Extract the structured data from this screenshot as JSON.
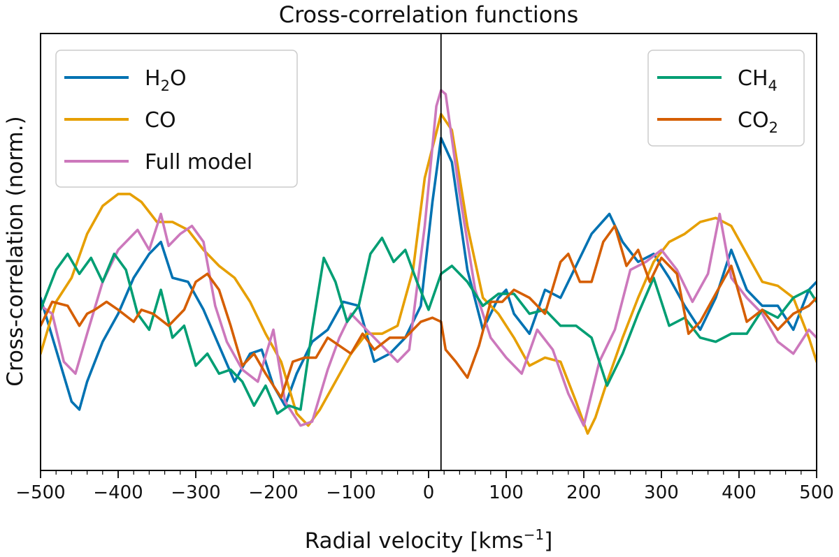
{
  "chart_data": {
    "type": "line",
    "title": "Cross-correlation functions",
    "xlabel": "Radial velocity [kms",
    "xlabel_sup": "−1",
    "xlabel_close": "]",
    "ylabel": "Cross-correlation (norm.)",
    "xlim": [
      -500,
      500
    ],
    "ylim": [
      0,
      1
    ],
    "xticks": [
      -500,
      -400,
      -300,
      -200,
      -100,
      0,
      100,
      200,
      300,
      400,
      500
    ],
    "xtick_labels": [
      "−500",
      "−400",
      "−300",
      "−200",
      "−100",
      "0",
      "100",
      "200",
      "300",
      "400",
      "500"
    ],
    "vline_x": 16,
    "legend_left": [
      {
        "base": "H",
        "sub": "2",
        "rest": "O",
        "series_index": 0
      },
      {
        "base": "CO",
        "sub": "",
        "rest": "",
        "series_index": 1
      },
      {
        "base": "Full model",
        "sub": "",
        "rest": "",
        "series_index": 2
      }
    ],
    "legend_right": [
      {
        "base": "CH",
        "sub": "4",
        "rest": "",
        "series_index": 3
      },
      {
        "base": "CO",
        "sub": "2",
        "rest": "",
        "series_index": 4
      }
    ],
    "series": [
      {
        "name": "H2O",
        "color": "#0072b2",
        "x": [
          -500,
          -480,
          -460,
          -450,
          -440,
          -420,
          -400,
          -380,
          -360,
          -345,
          -330,
          -310,
          -290,
          -270,
          -250,
          -230,
          -215,
          -200,
          -185,
          -170,
          -150,
          -130,
          -110,
          -90,
          -70,
          -50,
          -30,
          -10,
          5,
          16,
          30,
          50,
          70,
          90,
          100,
          110,
          130,
          150,
          170,
          190,
          210,
          233,
          250,
          270,
          290,
          310,
          330,
          350,
          370,
          390,
          410,
          430,
          450,
          470,
          490,
          500
        ],
        "y": [
          0.38,
          0.25,
          0.12,
          0.1,
          0.17,
          0.27,
          0.34,
          0.43,
          0.49,
          0.52,
          0.43,
          0.42,
          0.35,
          0.26,
          0.17,
          0.24,
          0.25,
          0.16,
          0.11,
          0.19,
          0.27,
          0.3,
          0.37,
          0.36,
          0.22,
          0.24,
          0.28,
          0.36,
          0.62,
          0.78,
          0.72,
          0.45,
          0.3,
          0.38,
          0.4,
          0.34,
          0.29,
          0.4,
          0.38,
          0.46,
          0.54,
          0.59,
          0.52,
          0.47,
          0.49,
          0.43,
          0.36,
          0.3,
          0.38,
          0.5,
          0.4,
          0.36,
          0.36,
          0.3,
          0.4,
          0.42
        ]
      },
      {
        "name": "CO",
        "color": "#e69f00",
        "x": [
          -500,
          -480,
          -460,
          -440,
          -420,
          -400,
          -385,
          -370,
          -350,
          -330,
          -310,
          -290,
          -270,
          -250,
          -230,
          -210,
          -190,
          -170,
          -155,
          -140,
          -120,
          -100,
          -80,
          -60,
          -40,
          -20,
          -5,
          16,
          30,
          50,
          70,
          90,
          110,
          130,
          150,
          170,
          190,
          205,
          215,
          230,
          250,
          270,
          290,
          310,
          330,
          350,
          370,
          390,
          410,
          430,
          450,
          470,
          490,
          500
        ],
        "y": [
          0.24,
          0.37,
          0.43,
          0.54,
          0.61,
          0.64,
          0.64,
          0.62,
          0.57,
          0.57,
          0.55,
          0.5,
          0.46,
          0.43,
          0.37,
          0.29,
          0.22,
          0.09,
          0.06,
          0.1,
          0.17,
          0.24,
          0.29,
          0.29,
          0.31,
          0.45,
          0.68,
          0.84,
          0.8,
          0.56,
          0.38,
          0.34,
          0.28,
          0.21,
          0.23,
          0.22,
          0.12,
          0.04,
          0.08,
          0.17,
          0.28,
          0.38,
          0.47,
          0.52,
          0.54,
          0.57,
          0.58,
          0.56,
          0.49,
          0.42,
          0.41,
          0.38,
          0.28,
          0.22
        ]
      },
      {
        "name": "Full model",
        "color": "#cc78bc",
        "x": [
          -500,
          -485,
          -470,
          -455,
          -440,
          -420,
          -400,
          -375,
          -360,
          -345,
          -335,
          -320,
          -305,
          -290,
          -275,
          -260,
          -240,
          -220,
          -200,
          -185,
          -165,
          -150,
          -130,
          -115,
          -100,
          -80,
          -60,
          -40,
          -25,
          -5,
          10,
          16,
          22,
          40,
          60,
          80,
          100,
          120,
          140,
          160,
          180,
          200,
          220,
          240,
          260,
          280,
          300,
          320,
          340,
          360,
          375,
          390,
          410,
          430,
          450,
          470,
          490,
          500
        ],
        "y": [
          0.36,
          0.34,
          0.22,
          0.19,
          0.29,
          0.42,
          0.5,
          0.55,
          0.5,
          0.59,
          0.51,
          0.54,
          0.56,
          0.52,
          0.36,
          0.27,
          0.2,
          0.17,
          0.3,
          0.12,
          0.06,
          0.07,
          0.2,
          0.28,
          0.34,
          0.3,
          0.26,
          0.22,
          0.25,
          0.56,
          0.86,
          0.9,
          0.89,
          0.64,
          0.4,
          0.28,
          0.23,
          0.19,
          0.3,
          0.25,
          0.14,
          0.06,
          0.22,
          0.3,
          0.45,
          0.47,
          0.5,
          0.45,
          0.37,
          0.44,
          0.59,
          0.43,
          0.38,
          0.34,
          0.27,
          0.24,
          0.3,
          0.28
        ]
      },
      {
        "name": "CH4",
        "color": "#009e73",
        "x": [
          -500,
          -480,
          -465,
          -450,
          -435,
          -420,
          -405,
          -390,
          -375,
          -360,
          -345,
          -330,
          -315,
          -300,
          -285,
          -270,
          -255,
          -240,
          -225,
          -210,
          -195,
          -180,
          -165,
          -150,
          -135,
          -120,
          -105,
          -90,
          -75,
          -60,
          -45,
          -30,
          -15,
          0,
          16,
          30,
          50,
          70,
          90,
          110,
          130,
          150,
          170,
          190,
          210,
          230,
          250,
          270,
          290,
          310,
          330,
          350,
          370,
          390,
          410,
          430,
          450,
          470,
          490,
          500
        ],
        "y": [
          0.35,
          0.45,
          0.49,
          0.44,
          0.48,
          0.42,
          0.49,
          0.45,
          0.34,
          0.3,
          0.4,
          0.28,
          0.31,
          0.21,
          0.24,
          0.19,
          0.2,
          0.17,
          0.11,
          0.16,
          0.09,
          0.11,
          0.1,
          0.3,
          0.48,
          0.42,
          0.32,
          0.36,
          0.49,
          0.53,
          0.47,
          0.5,
          0.42,
          0.35,
          0.44,
          0.46,
          0.42,
          0.36,
          0.39,
          0.39,
          0.34,
          0.35,
          0.31,
          0.31,
          0.28,
          0.16,
          0.24,
          0.34,
          0.43,
          0.31,
          0.33,
          0.28,
          0.27,
          0.29,
          0.29,
          0.35,
          0.33,
          0.38,
          0.4,
          0.37
        ]
      },
      {
        "name": "CO2",
        "color": "#d55e00",
        "x": [
          -500,
          -485,
          -465,
          -450,
          -440,
          -430,
          -415,
          -400,
          -380,
          -370,
          -355,
          -335,
          -315,
          -300,
          -285,
          -270,
          -255,
          -240,
          -225,
          -210,
          -190,
          -175,
          -160,
          -145,
          -130,
          -115,
          -100,
          -85,
          -70,
          -50,
          -30,
          -10,
          5,
          16,
          22,
          35,
          50,
          65,
          80,
          95,
          110,
          130,
          150,
          170,
          180,
          195,
          210,
          225,
          240,
          255,
          270,
          285,
          300,
          320,
          335,
          350,
          370,
          390,
          410,
          430,
          450,
          470,
          490,
          500
        ],
        "y": [
          0.31,
          0.37,
          0.36,
          0.31,
          0.34,
          0.35,
          0.37,
          0.35,
          0.32,
          0.35,
          0.34,
          0.31,
          0.35,
          0.42,
          0.44,
          0.4,
          0.31,
          0.21,
          0.24,
          0.19,
          0.13,
          0.22,
          0.23,
          0.23,
          0.28,
          0.26,
          0.24,
          0.29,
          0.25,
          0.28,
          0.28,
          0.32,
          0.33,
          0.32,
          0.25,
          0.22,
          0.18,
          0.26,
          0.37,
          0.37,
          0.4,
          0.38,
          0.34,
          0.47,
          0.49,
          0.42,
          0.42,
          0.52,
          0.56,
          0.46,
          0.5,
          0.42,
          0.48,
          0.44,
          0.29,
          0.32,
          0.39,
          0.46,
          0.32,
          0.35,
          0.3,
          0.34,
          0.36,
          0.38
        ]
      }
    ]
  }
}
